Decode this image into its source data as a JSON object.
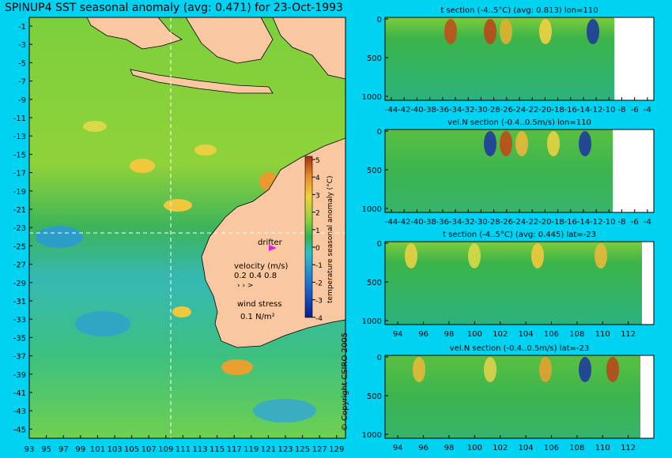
{
  "title": "SPINUP4 SST seasonal anomaly (avg: 0.471) for 23-Oct-1993",
  "copyright": "© Copyright CSIRO 2005",
  "colors": {
    "background": "#00d2f2",
    "land": "#f9c8a0",
    "warm": "#c0501a",
    "cold": "#0a1e8c"
  },
  "map": {
    "y_ticks": [
      "-1",
      "-3",
      "-5",
      "-7",
      "-9",
      "-11",
      "-13",
      "-15",
      "-17",
      "-19",
      "-21",
      "-23",
      "-25",
      "-27",
      "-29",
      "-31",
      "-33",
      "-35",
      "-37",
      "-39",
      "-41",
      "-43",
      "-45"
    ],
    "x_ticks": [
      "93",
      "95",
      "97",
      "99",
      "101",
      "103",
      "105",
      "107",
      "109",
      "111",
      "113",
      "115",
      "117",
      "119",
      "121",
      "123",
      "125",
      "127",
      "129"
    ],
    "drifter_label": "drifter",
    "velocity_label": "velocity (m/s)",
    "velocity_scale": "0.2 0.4 0.8",
    "wind_label": "wind stress",
    "wind_scale": "0.1 N/m²"
  },
  "colorbar": {
    "label": "temperature seasonal anomaly (°C)",
    "ticks": [
      "5",
      "4",
      "3",
      "2",
      "1",
      "0",
      "-1",
      "-2",
      "-3",
      "-4"
    ]
  },
  "chart_data": [
    {
      "type": "heatmap",
      "title": "SPINUP4 SST seasonal anomaly (avg: 0.471) for 23-Oct-1993",
      "xlim": [
        93,
        130
      ],
      "ylim": [
        -45,
        0
      ],
      "colorbar_range": [
        -4,
        5
      ],
      "crosshair": {
        "lon": 110,
        "lat": -23
      }
    },
    {
      "type": "heatmap",
      "title": "t section (-4..5°C) (avg: 0.813) lon=110",
      "x_ticks": [
        "-44",
        "-42",
        "-40",
        "-38",
        "-36",
        "-34",
        "-32",
        "-30",
        "-28",
        "-26",
        "-24",
        "-22",
        "-20",
        "-18",
        "-16",
        "-14",
        "-12",
        "-10",
        "-8",
        "-6",
        "-4"
      ],
      "y_ticks": [
        "0",
        "500",
        "1000"
      ],
      "xlim": [
        -45,
        -3
      ],
      "ylim": [
        0,
        1050
      ]
    },
    {
      "type": "heatmap",
      "title": "vel.N section (-0.4..0.5m/s) lon=110",
      "x_ticks": [
        "-44",
        "-42",
        "-40",
        "-38",
        "-36",
        "-34",
        "-32",
        "-30",
        "-28",
        "-26",
        "-24",
        "-22",
        "-20",
        "-18",
        "-16",
        "-14",
        "-12",
        "-10",
        "-8",
        "-6",
        "-4"
      ],
      "y_ticks": [
        "0",
        "500",
        "1000"
      ],
      "xlim": [
        -45,
        -3
      ],
      "ylim": [
        0,
        1050
      ]
    },
    {
      "type": "heatmap",
      "title": "t section (-4..5°C) (avg: 0.445) lat=-23",
      "x_ticks": [
        "94",
        "96",
        "98",
        "100",
        "102",
        "104",
        "106",
        "108",
        "110",
        "112"
      ],
      "y_ticks": [
        "0",
        "500",
        "1000"
      ],
      "xlim": [
        93,
        114
      ],
      "ylim": [
        0,
        1050
      ]
    },
    {
      "type": "heatmap",
      "title": "vel.N section (-0.4..0.5m/s) lat=-23",
      "x_ticks": [
        "94",
        "96",
        "98",
        "100",
        "102",
        "104",
        "106",
        "108",
        "110",
        "112"
      ],
      "y_ticks": [
        "0",
        "500",
        "1000"
      ],
      "xlim": [
        93,
        114
      ],
      "ylim": [
        0,
        1050
      ]
    }
  ]
}
